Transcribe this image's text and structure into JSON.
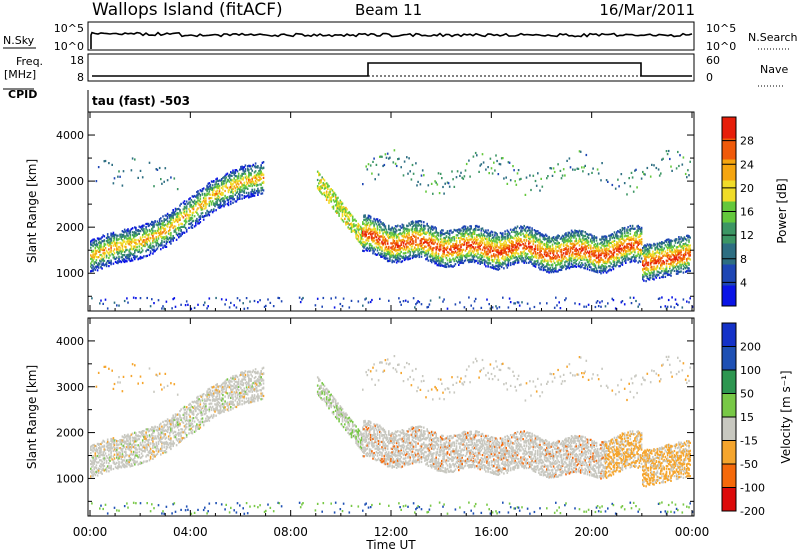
{
  "header": {
    "station": "Wallops Island (fitACF)",
    "beam": "Beam 11",
    "date": "16/Mar/2011"
  },
  "strip_panels": {
    "nsky_label": "N.Sky",
    "nsky_ticks": [
      "10^5",
      "10^0"
    ],
    "nsearch_label": "N.Search",
    "nsearch_ticks": [
      "10^5",
      "10^0"
    ],
    "freq_label": "Freq.",
    "freq_unit": "[MHz]",
    "freq_ticks": [
      "18",
      "8"
    ],
    "nave_label": "Nave",
    "nave_ticks": [
      "60",
      "0"
    ],
    "cpid_label": "CPID",
    "cpid_text": "tau (fast) -503"
  },
  "colors": {
    "power_scale": [
      "#0a14e6",
      "#1e46b4",
      "#2d6e82",
      "#3c9664",
      "#64c83c",
      "#f0dc28",
      "#f5a50f",
      "#f05a0a",
      "#e61e0a"
    ],
    "velocity_scale": [
      "#dc0a0a",
      "#f5690a",
      "#f5a52d",
      "#c8c8c0",
      "#78c846",
      "#2d9650",
      "#1e50b4",
      "#1432c8"
    ]
  },
  "chart_data": [
    {
      "type": "heatmap",
      "title": "",
      "xlabel": "",
      "ylabel": "Slant Range [km]",
      "xlim": [
        "00:00",
        "24:00"
      ],
      "ylim": [
        180,
        4500
      ],
      "yticks": [
        1000,
        2000,
        3000,
        4000
      ],
      "colorbar": {
        "label": "Power [dB]",
        "range": [
          0,
          32
        ],
        "ticks": [
          "4",
          "8",
          "12",
          "16",
          "20",
          "24",
          "28"
        ]
      },
      "series": [
        {
          "name": "",
          "x_hours": [
            0.0,
            1.0,
            2.0,
            3.0,
            4.0,
            5.0,
            6.0,
            6.8
          ],
          "y_km": [
            1400,
            1600,
            1700,
            1950,
            2350,
            2750,
            3000,
            3100
          ]
        },
        {
          "name": "",
          "x_hours": [
            10.8,
            12.0,
            13.0,
            14.0,
            15.0,
            16.0,
            17.0,
            18.0,
            19.0,
            20.0,
            21.0,
            22.0
          ],
          "y_km": [
            1800,
            1700,
            1650,
            1600,
            1550,
            1550,
            1550,
            1500,
            1450,
            1450,
            1500,
            1600
          ]
        }
      ]
    },
    {
      "type": "heatmap",
      "title": "",
      "xlabel": "Time UT",
      "ylabel": "Slant Range [km]",
      "xlim": [
        "00:00",
        "24:00"
      ],
      "ylim": [
        180,
        4500
      ],
      "yticks": [
        1000,
        2000,
        3000,
        4000
      ],
      "xticks": [
        "00:00",
        "04:00",
        "08:00",
        "12:00",
        "16:00",
        "20:00",
        "00:00"
      ],
      "colorbar": {
        "label": "Velocity [m s⁻¹]",
        "range": [
          -250,
          250
        ],
        "ticks": [
          "200",
          "100",
          "50",
          "15",
          "-15",
          "-50",
          "-100",
          "-200"
        ]
      }
    }
  ]
}
